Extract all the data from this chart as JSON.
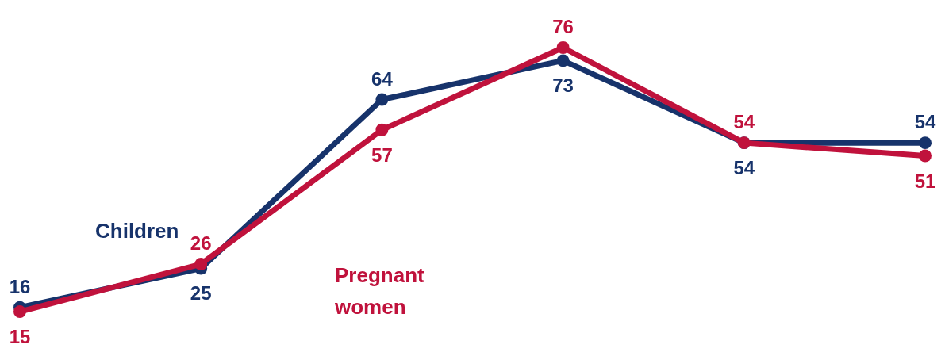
{
  "chart_data": {
    "type": "line",
    "categories": [
      null,
      null,
      null,
      null,
      null,
      null
    ],
    "data_labels": true,
    "marker": "circle",
    "line_style": "solid",
    "series": [
      {
        "name": "Children",
        "color": "#17336b",
        "values": [
          16,
          25,
          64,
          73,
          54,
          54
        ]
      },
      {
        "name": "Pregnant women",
        "color": "#c0123c",
        "values": [
          15,
          26,
          57,
          76,
          54,
          51
        ]
      }
    ]
  }
}
